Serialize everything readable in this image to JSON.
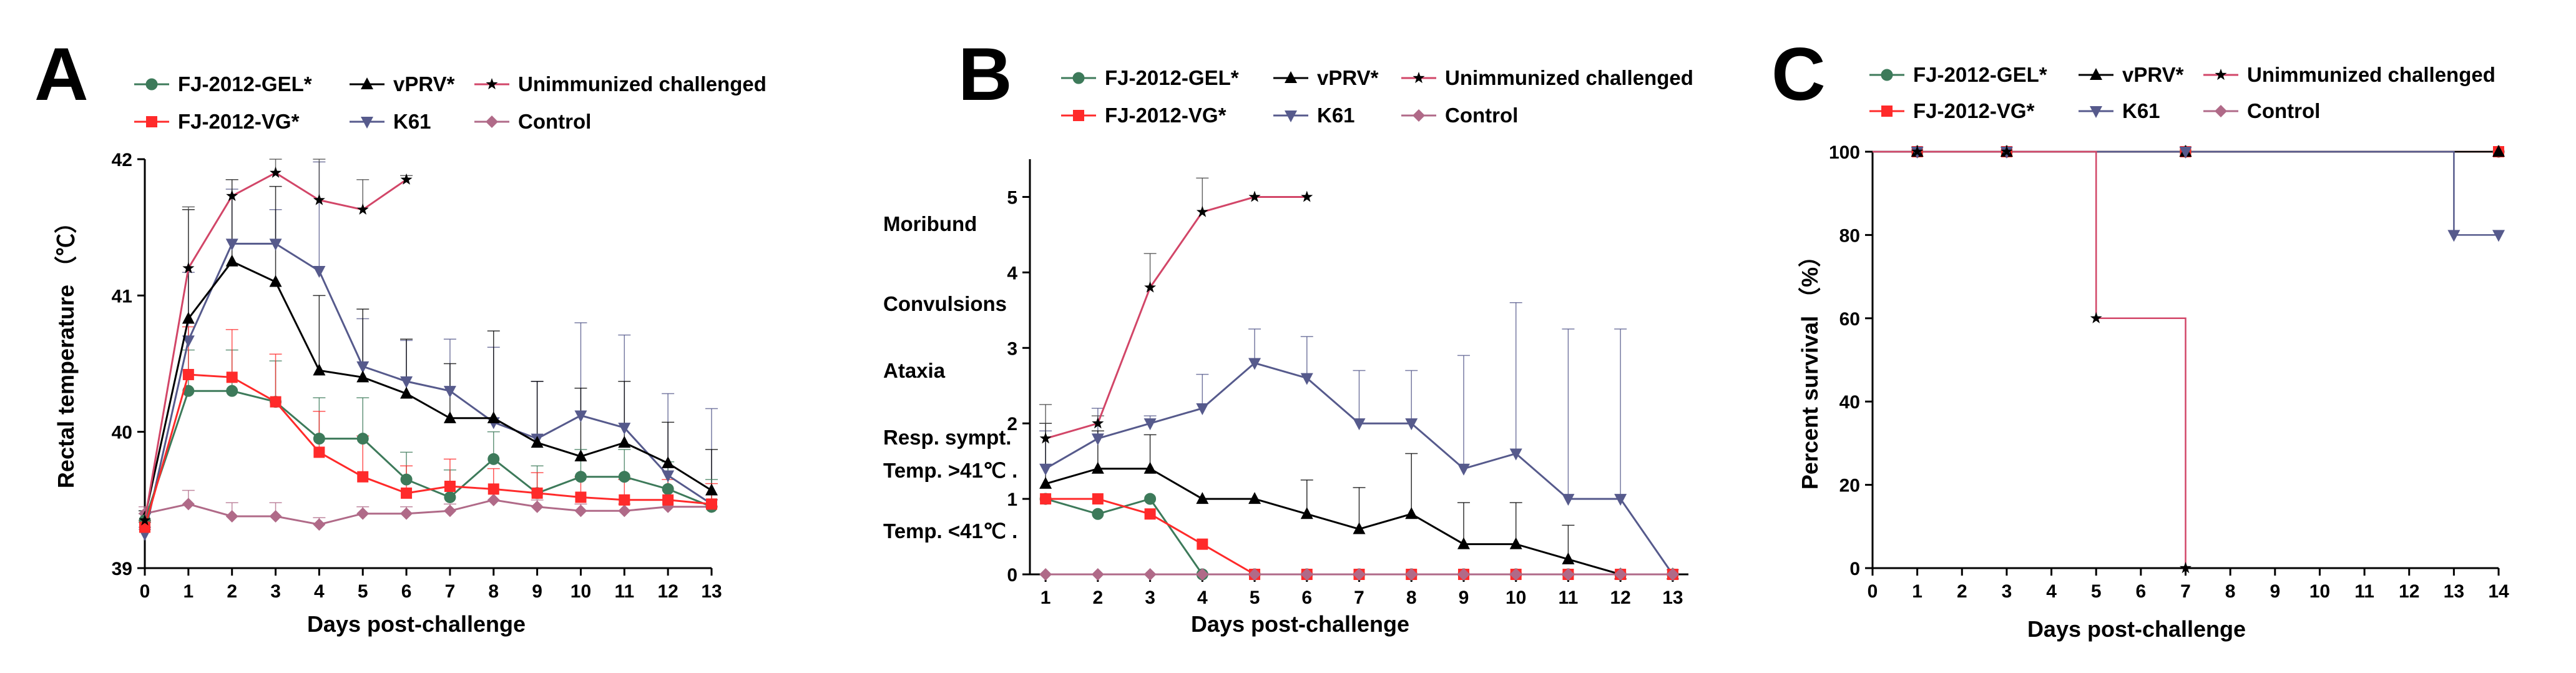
{
  "figure": {
    "series_styles": [
      {
        "name": "FJ-2012-GEL*",
        "color": "#3d7a5a",
        "marker": "circle"
      },
      {
        "name": "FJ-2012-VG*",
        "color": "#ff2a2a",
        "marker": "square"
      },
      {
        "name": "vPRV*",
        "color": "#000000",
        "marker": "triangle"
      },
      {
        "name": "K61",
        "color": "#565a8c",
        "marker": "triangle-down"
      },
      {
        "name": "Unimmunized challenged",
        "color": "#d24668",
        "marker": "star"
      },
      {
        "name": "Control",
        "color": "#b06a88",
        "marker": "diamond"
      }
    ]
  },
  "chart_data": [
    {
      "panel": "A",
      "type": "line",
      "xlabel": "Days post-challenge",
      "ylabel": "Rectal temperature （℃）",
      "x": [
        0,
        1,
        2,
        3,
        4,
        5,
        6,
        7,
        8,
        9,
        10,
        11,
        12,
        13
      ],
      "xlim": [
        0,
        13
      ],
      "ylim": [
        39,
        42
      ],
      "yticks": [
        39,
        40,
        41,
        42
      ],
      "series": [
        {
          "name": "FJ-2012-GEL*",
          "values": [
            39.35,
            40.3,
            40.3,
            40.22,
            39.95,
            39.95,
            39.65,
            39.52,
            39.8,
            39.55,
            39.67,
            39.67,
            39.58,
            39.45
          ],
          "err": [
            0.05,
            0.3,
            0.3,
            0.3,
            0.3,
            0.3,
            0.2,
            0.2,
            0.2,
            0.2,
            0.2,
            0.2,
            0.2,
            0.2
          ]
        },
        {
          "name": "FJ-2012-VG*",
          "values": [
            39.3,
            40.42,
            40.4,
            40.22,
            39.85,
            39.67,
            39.55,
            39.6,
            39.58,
            39.55,
            39.52,
            39.5,
            39.5,
            39.47
          ],
          "err": [
            0.05,
            0.35,
            0.35,
            0.35,
            0.3,
            0.3,
            0.2,
            0.2,
            0.15,
            0.15,
            0.15,
            0.15,
            0.15,
            0.15
          ]
        },
        {
          "name": "vPRV*",
          "values": [
            39.37,
            40.83,
            41.25,
            41.1,
            40.45,
            40.4,
            40.28,
            40.1,
            40.1,
            39.92,
            39.82,
            39.92,
            39.77,
            39.57
          ],
          "err": [
            0.05,
            0.8,
            0.6,
            0.7,
            0.55,
            0.5,
            0.4,
            0.4,
            0.64,
            0.45,
            0.5,
            0.45,
            0.3,
            0.3
          ]
        },
        {
          "name": "K61",
          "values": [
            39.25,
            40.67,
            41.38,
            41.38,
            41.18,
            40.48,
            40.37,
            40.3,
            40.07,
            39.95,
            40.12,
            40.03,
            39.68,
            39.47
          ],
          "err": [
            0.05,
            0.5,
            0.4,
            0.25,
            0.8,
            0.35,
            0.3,
            0.38,
            0.55,
            0.42,
            0.68,
            0.68,
            0.6,
            0.7
          ]
        },
        {
          "name": "Unimmunized challenged",
          "values": [
            39.35,
            41.2,
            41.73,
            41.9,
            41.7,
            41.63,
            41.85,
            null,
            null,
            null,
            null,
            null,
            null,
            null
          ],
          "err": [
            0.05,
            0.45,
            0.12,
            0.1,
            0.3,
            0.22,
            0.03,
            null,
            null,
            null,
            null,
            null,
            null,
            null
          ]
        },
        {
          "name": "Control",
          "values": [
            39.4,
            39.47,
            39.38,
            39.38,
            39.32,
            39.4,
            39.4,
            39.42,
            39.5,
            39.45,
            39.42,
            39.42,
            39.45,
            39.45
          ],
          "err": [
            0.05,
            0.1,
            0.1,
            0.1,
            0.05,
            0.05,
            0.05,
            0.05,
            0.08,
            0.05,
            0.05,
            0.05,
            0.05,
            0.05
          ]
        }
      ]
    },
    {
      "panel": "B",
      "type": "line",
      "xlabel": "Days post-challenge",
      "ylabel": "",
      "x": [
        1,
        2,
        3,
        4,
        5,
        6,
        7,
        8,
        9,
        10,
        11,
        12,
        13
      ],
      "xlim": [
        0.7,
        13.3
      ],
      "ylim": [
        0,
        5.5
      ],
      "yticks": [
        0,
        1,
        2,
        3,
        4,
        5
      ],
      "category_labels": [
        "Moribund",
        "Convulsions",
        "Ataxia",
        "Resp. sympt.",
        "Temp. >41℃ .",
        "Temp. <41℃ ."
      ],
      "series": [
        {
          "name": "FJ-2012-GEL*",
          "values": [
            1.0,
            0.8,
            1.0,
            0.0,
            0.0,
            0.0,
            0.0,
            0.0,
            0.0,
            0.0,
            0.0,
            0.0,
            0.0
          ],
          "err": [
            0,
            0,
            0,
            0,
            0,
            0,
            0,
            0,
            0,
            0,
            0,
            0,
            0
          ]
        },
        {
          "name": "FJ-2012-VG*",
          "values": [
            1.0,
            1.0,
            0.8,
            0.4,
            0.0,
            0.0,
            0.0,
            0.0,
            0.0,
            0.0,
            0.0,
            0.0,
            0.0
          ],
          "err": [
            0,
            0,
            0,
            0,
            0,
            0,
            0,
            0,
            0,
            0,
            0,
            0,
            0
          ]
        },
        {
          "name": "vPRV*",
          "values": [
            1.2,
            1.4,
            1.4,
            1.0,
            1.0,
            0.8,
            0.6,
            0.8,
            0.4,
            0.4,
            0.2,
            0.0,
            0.0
          ],
          "err": [
            0.8,
            0.5,
            0.45,
            0,
            0,
            0.45,
            0.55,
            0.8,
            0.55,
            0.55,
            0.45,
            0,
            0
          ]
        },
        {
          "name": "K61",
          "values": [
            1.4,
            1.8,
            2.0,
            2.2,
            2.8,
            2.6,
            2.0,
            2.0,
            1.4,
            1.6,
            1.0,
            1.0,
            0.0
          ],
          "err": [
            0.5,
            0.4,
            0.1,
            0.45,
            0.45,
            0.55,
            0.7,
            0.7,
            1.5,
            2.0,
            2.25,
            2.25,
            0
          ]
        },
        {
          "name": "Unimmunized challenged",
          "values": [
            1.8,
            2.0,
            3.8,
            4.8,
            5.0,
            5.0,
            null,
            null,
            null,
            null,
            null,
            null,
            null
          ],
          "err": [
            0.45,
            0.1,
            0.45,
            0.45,
            0,
            0,
            null,
            null,
            null,
            null,
            null,
            null,
            null
          ]
        },
        {
          "name": "Control",
          "values": [
            0,
            0,
            0,
            0,
            0,
            0,
            0,
            0,
            0,
            0,
            0,
            0,
            0
          ],
          "err": [
            0,
            0,
            0,
            0,
            0,
            0,
            0,
            0,
            0,
            0,
            0,
            0,
            0
          ]
        }
      ]
    },
    {
      "panel": "C",
      "type": "line",
      "xlabel": "Days post-challenge",
      "ylabel": "Percent survival （%）",
      "xlim": [
        0,
        14
      ],
      "ylim": [
        0,
        100
      ],
      "xticks": [
        0,
        1,
        2,
        3,
        4,
        5,
        6,
        7,
        8,
        9,
        10,
        11,
        12,
        13,
        14
      ],
      "yticks": [
        0,
        20,
        40,
        60,
        80,
        100
      ],
      "series": [
        {
          "name": "FJ-2012-GEL*",
          "steps": [
            [
              0,
              100
            ],
            [
              14,
              100
            ]
          ],
          "markers": [
            [
              1,
              100
            ],
            [
              3,
              100
            ],
            [
              7,
              100
            ],
            [
              14,
              100
            ]
          ]
        },
        {
          "name": "FJ-2012-VG*",
          "steps": [
            [
              0,
              100
            ],
            [
              14,
              100
            ]
          ],
          "markers": [
            [
              1,
              100
            ],
            [
              3,
              100
            ],
            [
              7,
              100
            ],
            [
              14,
              100
            ]
          ]
        },
        {
          "name": "vPRV*",
          "steps": [
            [
              0,
              100
            ],
            [
              14,
              100
            ]
          ],
          "markers": [
            [
              1,
              100
            ],
            [
              3,
              100
            ],
            [
              7,
              100
            ],
            [
              14,
              100
            ]
          ]
        },
        {
          "name": "K61",
          "steps": [
            [
              0,
              100
            ],
            [
              13,
              100
            ],
            [
              13,
              80
            ],
            [
              14,
              80
            ]
          ],
          "markers": [
            [
              1,
              100
            ],
            [
              3,
              100
            ],
            [
              7,
              100
            ],
            [
              13,
              80
            ],
            [
              14,
              80
            ]
          ]
        },
        {
          "name": "Unimmunized challenged",
          "steps": [
            [
              0,
              100
            ],
            [
              5,
              100
            ],
            [
              5,
              60
            ],
            [
              7,
              60
            ],
            [
              7,
              0
            ]
          ],
          "markers": [
            [
              1,
              100
            ],
            [
              3,
              100
            ],
            [
              5,
              60
            ],
            [
              7,
              0
            ]
          ]
        },
        {
          "name": "Control",
          "steps": [
            [
              0,
              100
            ],
            [
              14,
              100
            ]
          ],
          "markers": [
            [
              1,
              100
            ],
            [
              3,
              100
            ],
            [
              7,
              100
            ],
            [
              14,
              100
            ]
          ]
        }
      ]
    }
  ]
}
